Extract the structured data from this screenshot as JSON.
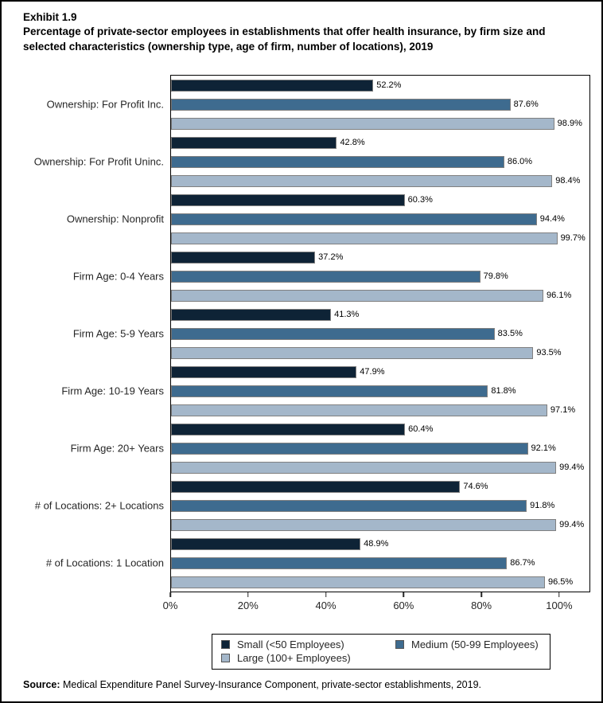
{
  "page": {
    "exhibit_label": "Exhibit 1.9",
    "source_label": "Source:",
    "source_text": " Medical Expenditure Panel Survey-Insurance Component, private-sector establishments, 2019."
  },
  "chart_data": {
    "type": "bar",
    "orientation": "horizontal",
    "title": "Percentage of private-sector employees in establishments that offer health insurance, by firm size and selected characteristics (ownership type, age of firm, number of locations), 2019",
    "categories": [
      "Ownership: For Profit Inc.",
      "Ownership: For Profit Uninc.",
      "Ownership: Nonprofit",
      "Firm Age: 0-4 Years",
      "Firm Age: 5-9 Years",
      "Firm Age: 10-19 Years",
      "Firm Age: 20+ Years",
      "# of Locations: 2+ Locations",
      "# of Locations: 1 Location"
    ],
    "series": [
      {
        "name": "Small (<50 Employees)",
        "color": "#0e2336",
        "values": [
          52.2,
          42.8,
          60.3,
          37.2,
          41.3,
          47.9,
          60.4,
          74.6,
          48.9
        ]
      },
      {
        "name": "Medium (50-99 Employees)",
        "color": "#3e6b8f",
        "values": [
          87.6,
          86.0,
          94.4,
          79.8,
          83.5,
          81.8,
          92.1,
          91.8,
          86.7
        ]
      },
      {
        "name": "Large (100+ Employees)",
        "color": "#a4b7ca",
        "values": [
          98.9,
          98.4,
          99.7,
          96.1,
          93.5,
          97.1,
          99.4,
          99.4,
          96.5
        ]
      }
    ],
    "data_labels": true,
    "x_ticks": [
      0,
      20,
      40,
      60,
      80,
      100
    ],
    "x_tick_suffix": "%",
    "xlim": [
      0,
      108
    ],
    "bar_border_color": "#808080",
    "grid": false,
    "legend_position": "bottom"
  }
}
